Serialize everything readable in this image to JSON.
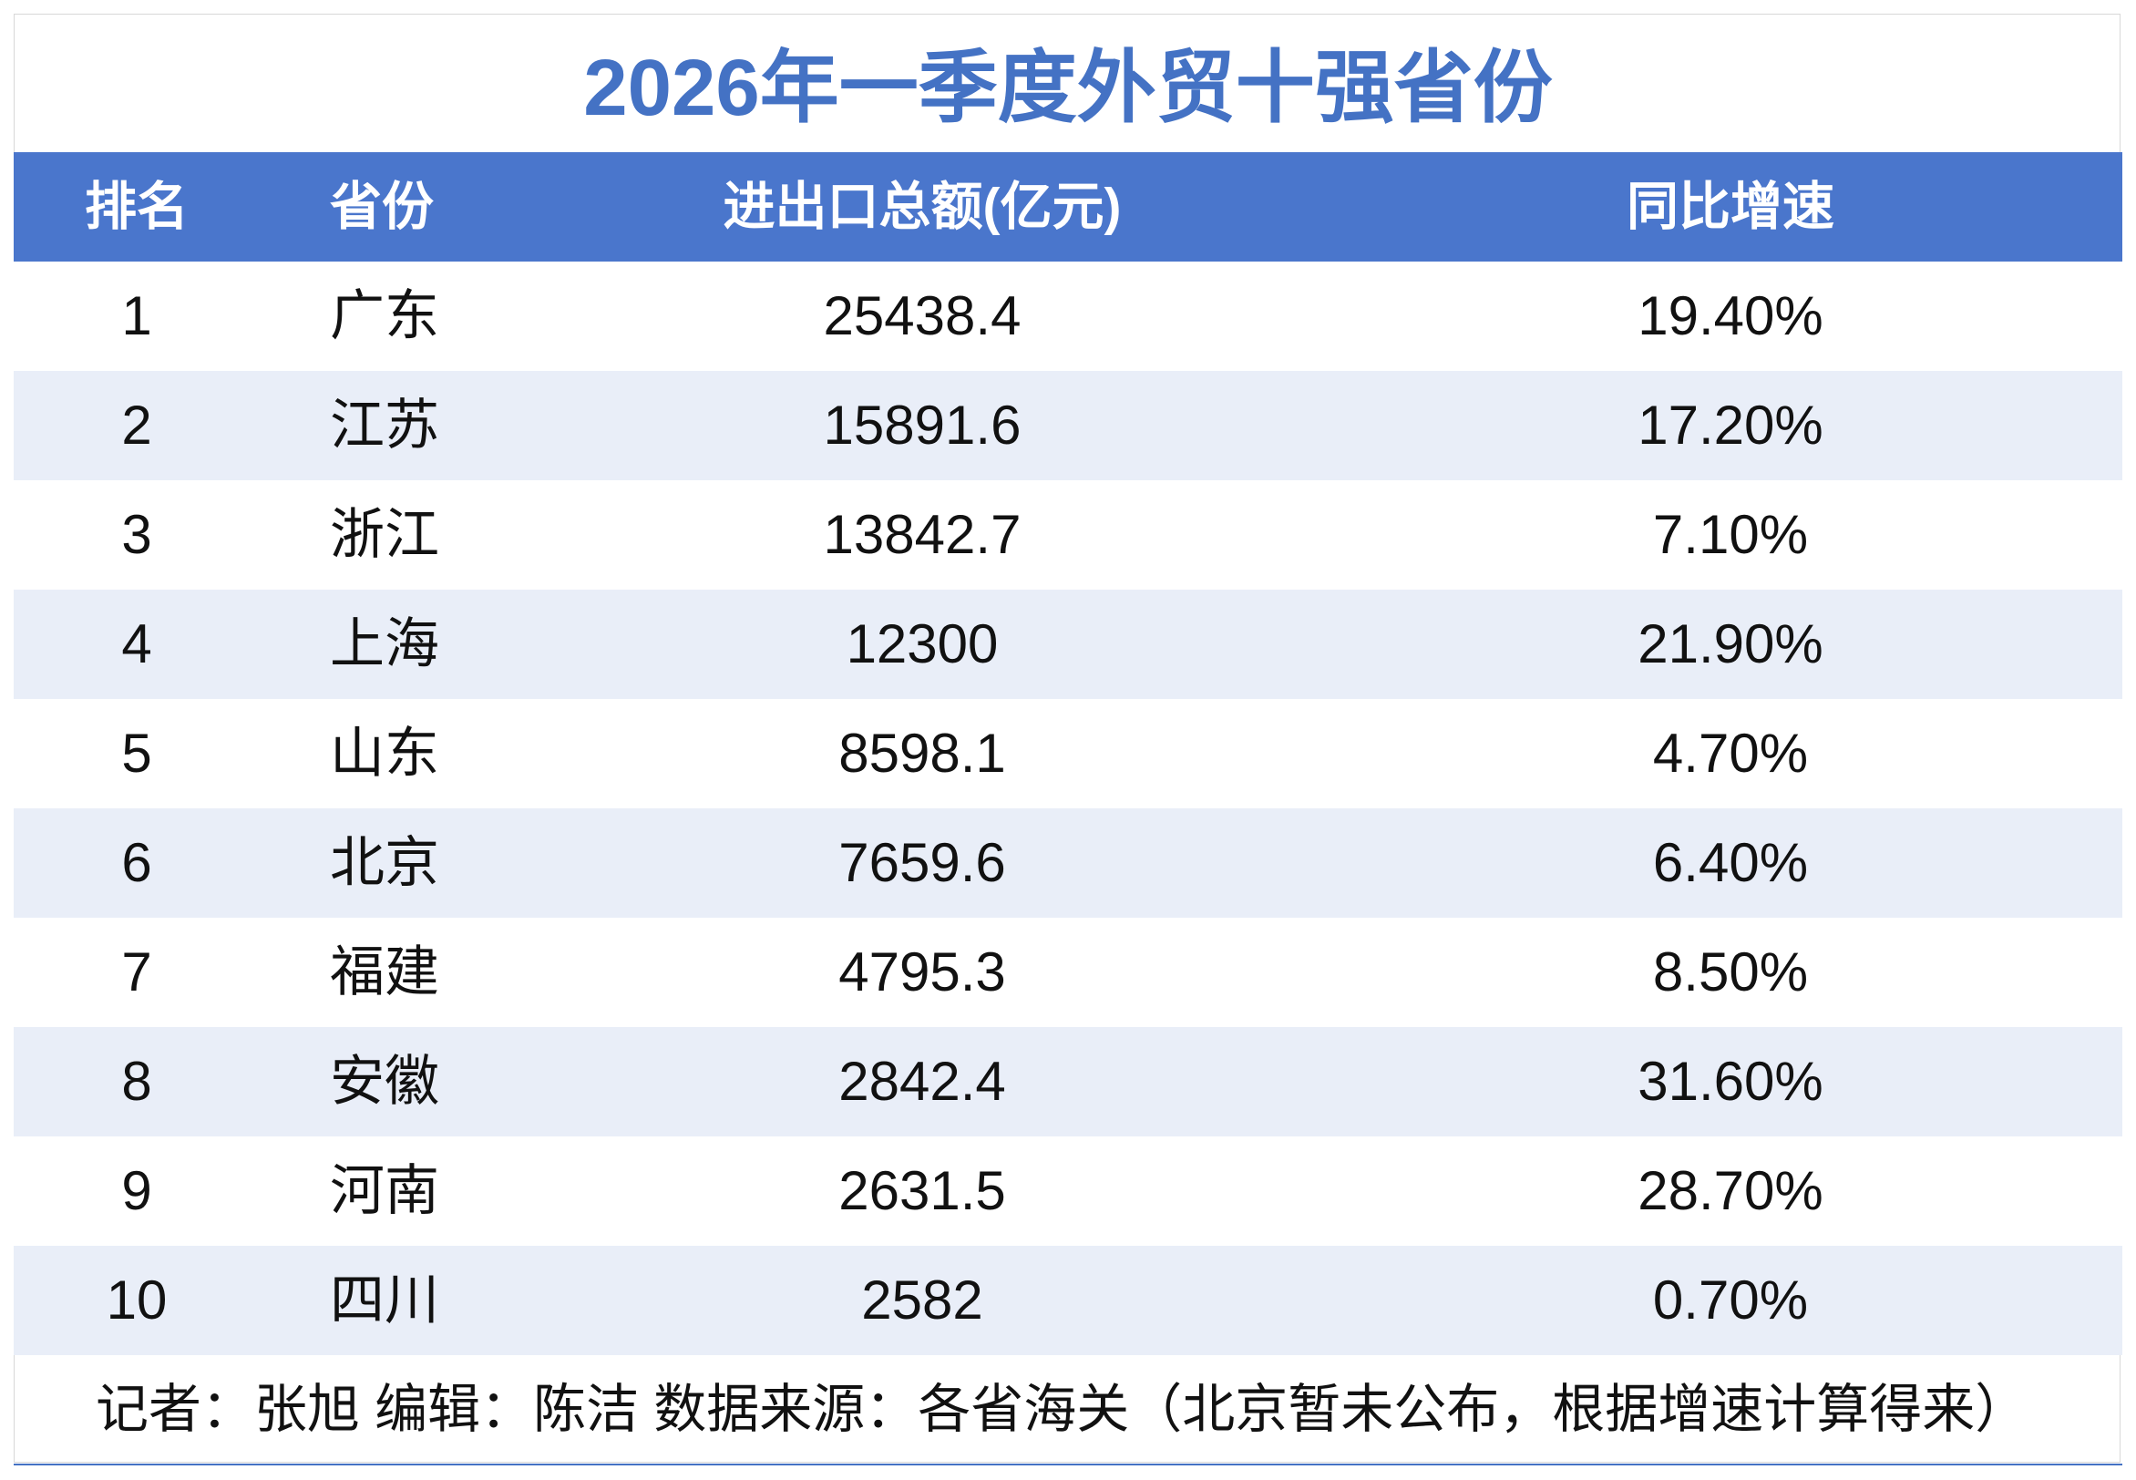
{
  "title": "2026年一季度外贸十强省份",
  "table": {
    "header": [
      "排名",
      "省份",
      "进出口总额(亿元)",
      "同比增速"
    ],
    "rows": [
      [
        "1",
        "广东",
        "25438.4",
        "19.40%"
      ],
      [
        "2",
        "江苏",
        "15891.6",
        "17.20%"
      ],
      [
        "3",
        "浙江",
        "13842.7",
        "7.10%"
      ],
      [
        "4",
        "上海",
        "12300",
        "21.90%"
      ],
      [
        "5",
        "山东",
        "8598.1",
        "4.70%"
      ],
      [
        "6",
        "北京",
        "7659.6",
        "6.40%"
      ],
      [
        "7",
        "福建",
        "4795.3",
        "8.50%"
      ],
      [
        "8",
        "安徽",
        "2842.4",
        "31.60%"
      ],
      [
        "9",
        "河南",
        "2631.5",
        "28.70%"
      ],
      [
        "10",
        "四川",
        "2582",
        "0.70%"
      ]
    ]
  },
  "footer": "记者：张旭 编辑：陈洁 数据来源：各省海关（北京暂未公布，根据增速计算得来）"
}
